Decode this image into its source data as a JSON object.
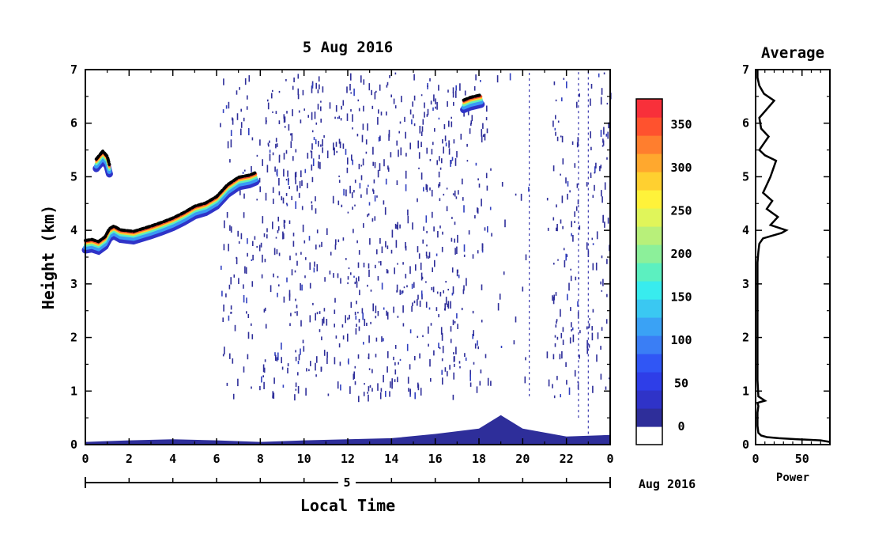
{
  "chart_data": [
    {
      "type": "heatmap",
      "title": "5 Aug 2016",
      "xlabel": "Local Time",
      "ylabel": "Height (km)",
      "x_ticks": [
        "0",
        "2",
        "4",
        "6",
        "8",
        "10",
        "12",
        "14",
        "16",
        "18",
        "20",
        "22",
        "0"
      ],
      "y_ticks": [
        "0",
        "1",
        "2",
        "3",
        "4",
        "5",
        "6",
        "7"
      ],
      "xlim": [
        0,
        24
      ],
      "ylim": [
        0,
        7
      ],
      "day_label": "5",
      "date_label": "Aug 2016",
      "colorbar": {
        "ticks": [
          "0",
          "50",
          "100",
          "150",
          "200",
          "250",
          "300",
          "350"
        ],
        "range": [
          0,
          380
        ],
        "colors": [
          "#ffffff",
          "#2e2e9a",
          "#2f33c8",
          "#2e3ee8",
          "#3056f5",
          "#3a7ef5",
          "#3aa2f5",
          "#3ac8f2",
          "#38ecee",
          "#5cf0c0",
          "#8cf09a",
          "#b8f07a",
          "#e0f55a",
          "#fff23a",
          "#ffd030",
          "#ffa82e",
          "#ff7e2e",
          "#ff522e",
          "#f8303a"
        ]
      },
      "layers": [
        {
          "name": "inversion-layer",
          "points": [
            [
              0.0,
              3.78
            ],
            [
              0.3,
              3.8
            ],
            [
              0.6,
              3.76
            ],
            [
              0.9,
              3.85
            ],
            [
              1.1,
              4.0
            ],
            [
              1.3,
              4.05
            ],
            [
              1.6,
              3.98
            ],
            [
              2.2,
              3.95
            ],
            [
              3.0,
              4.05
            ],
            [
              3.5,
              4.12
            ],
            [
              4.0,
              4.2
            ],
            [
              4.5,
              4.3
            ],
            [
              5.0,
              4.42
            ],
            [
              5.5,
              4.48
            ],
            [
              6.0,
              4.6
            ],
            [
              6.5,
              4.82
            ],
            [
              7.0,
              4.96
            ],
            [
              7.5,
              5.0
            ],
            [
              7.8,
              5.05
            ]
          ]
        },
        {
          "name": "upper-layer",
          "points": [
            [
              0.5,
              5.3
            ],
            [
              0.8,
              5.45
            ],
            [
              1.0,
              5.35
            ],
            [
              1.1,
              5.2
            ]
          ]
        },
        {
          "name": "elevated-layer",
          "points": [
            [
              17.3,
              6.4
            ],
            [
              17.6,
              6.45
            ],
            [
              17.9,
              6.48
            ],
            [
              18.1,
              6.5
            ]
          ]
        }
      ],
      "ground_clutter_height_km": [
        [
          0,
          0.05
        ],
        [
          2,
          0.08
        ],
        [
          4,
          0.1
        ],
        [
          6,
          0.08
        ],
        [
          8,
          0.05
        ],
        [
          10,
          0.08
        ],
        [
          12,
          0.1
        ],
        [
          14,
          0.12
        ],
        [
          16,
          0.2
        ],
        [
          18,
          0.3
        ],
        [
          19,
          0.55
        ],
        [
          20,
          0.3
        ],
        [
          22,
          0.15
        ],
        [
          24,
          0.18
        ]
      ]
    },
    {
      "type": "line",
      "title": "Average",
      "xlabel": "Power",
      "x_ticks": [
        "0",
        "50"
      ],
      "y_ticks": [
        "0",
        "1",
        "2",
        "3",
        "4",
        "5",
        "6",
        "7"
      ],
      "xlim": [
        0,
        80
      ],
      "ylim": [
        0,
        7
      ],
      "series": [
        {
          "x": [
            80,
            70,
            45,
            25,
            12,
            6,
            3,
            2,
            2,
            3,
            2,
            10,
            3,
            2,
            2,
            2,
            2,
            3,
            4,
            8,
            28,
            33,
            16,
            24,
            12,
            18,
            8,
            12,
            16,
            22,
            10,
            4,
            8,
            14,
            6,
            4,
            20,
            9,
            4,
            2,
            2
          ],
          "y": [
            0.05,
            0.08,
            0.1,
            0.12,
            0.14,
            0.17,
            0.22,
            0.35,
            0.6,
            0.72,
            0.78,
            0.82,
            0.9,
            1.2,
            2.0,
            3.0,
            3.4,
            3.6,
            3.75,
            3.85,
            3.95,
            4.0,
            4.1,
            4.25,
            4.4,
            4.55,
            4.7,
            4.85,
            5.0,
            5.3,
            5.4,
            5.5,
            5.6,
            5.75,
            5.9,
            6.1,
            6.42,
            6.55,
            6.7,
            6.85,
            7.0
          ]
        }
      ]
    }
  ]
}
